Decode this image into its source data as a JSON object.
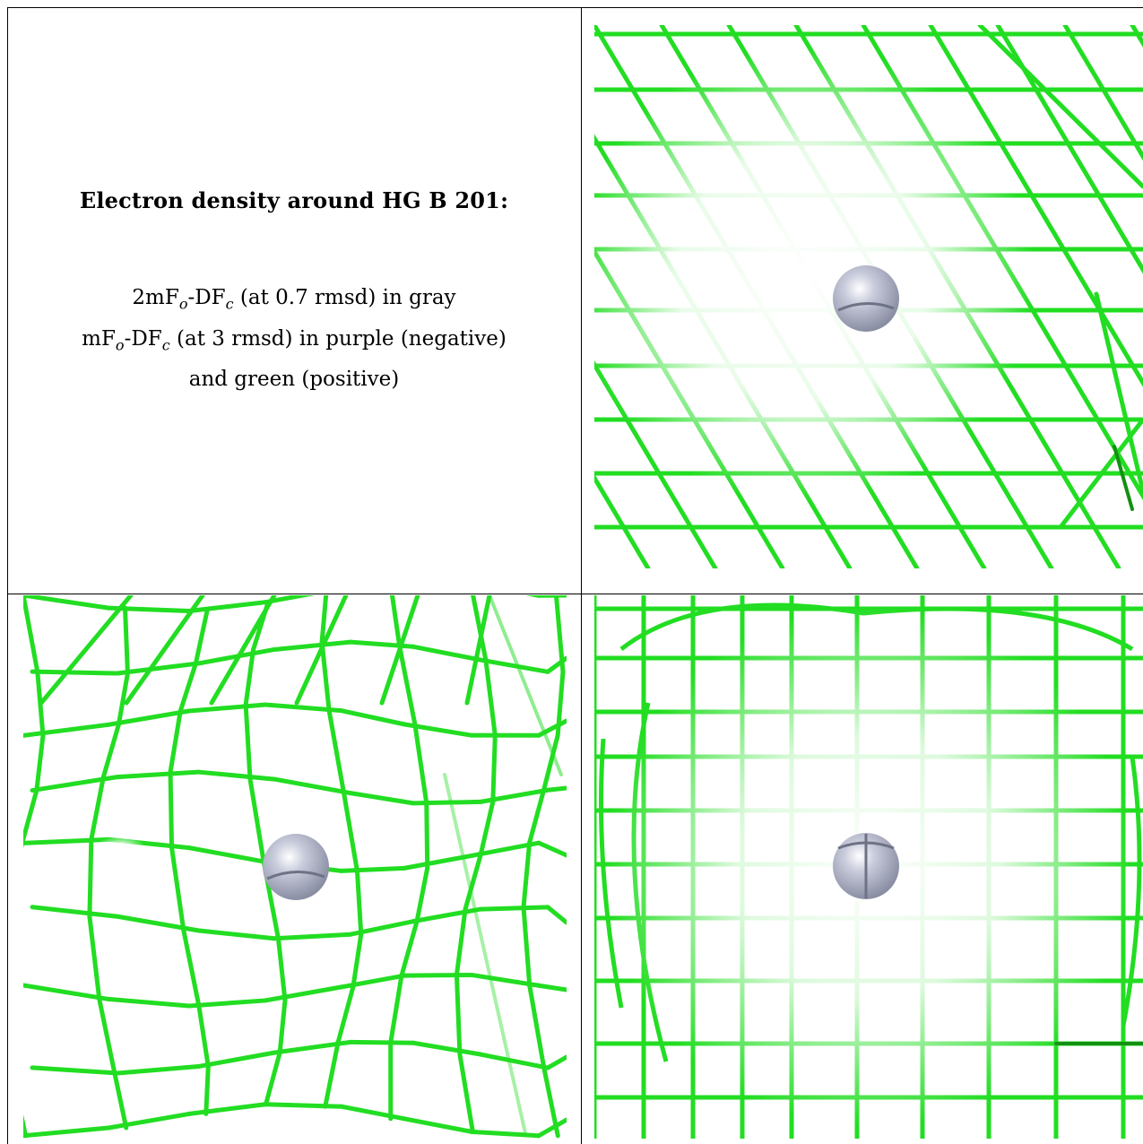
{
  "title": "Electron density around HG B 201:",
  "legend": {
    "line1": {
      "a": "2mF",
      "sub1": "o",
      "b": "-DF",
      "sub2": "c",
      "c": " (at 0.7 rmsd) in gray"
    },
    "line2": {
      "a": "mF",
      "sub1": "o",
      "b": "-DF",
      "sub2": "c",
      "c": " (at 3 rmsd) in purple (negative)"
    },
    "line3": "and green (positive)"
  },
  "colors": {
    "mesh": "#22dd22",
    "mesh_dark": "#129012",
    "atom": "#a9adc0",
    "border": "#000000"
  },
  "panels": [
    {
      "name": "top-right",
      "view": "view-1",
      "atom": "hg-atom"
    },
    {
      "name": "bottom-left",
      "view": "view-2",
      "atom": "hg-atom"
    },
    {
      "name": "bottom-right",
      "view": "view-3",
      "atom": "hg-atom"
    }
  ]
}
